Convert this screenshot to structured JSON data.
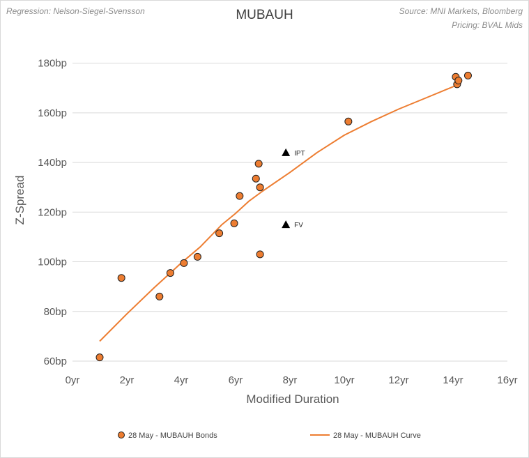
{
  "notes": {
    "left": "Regression: Nelson-Siegel-Svensson",
    "right_line1": "Source: MNI Markets, Bloomberg",
    "right_line2": "Pricing: BVAL Mids"
  },
  "colors": {
    "marker_fill": "#ed7d31",
    "marker_stroke": "#1f1f1f",
    "curve": "#ed7d31",
    "grid": "#d9d9d9",
    "annotation": "#000000"
  },
  "chart_data": {
    "type": "scatter",
    "title": "MUBAUH",
    "xlabel": "Modified Duration",
    "ylabel": "Z-Spread",
    "xlim": [
      0,
      16
    ],
    "ylim": [
      60,
      190
    ],
    "x_ticks": [
      0,
      2,
      4,
      6,
      8,
      10,
      12,
      14,
      16
    ],
    "x_tick_labels": [
      "0yr",
      "2yr",
      "4yr",
      "6yr",
      "8yr",
      "10yr",
      "12yr",
      "14yr",
      "16yr"
    ],
    "y_ticks": [
      60,
      80,
      100,
      120,
      140,
      160,
      180
    ],
    "y_tick_labels": [
      "60bp",
      "80bp",
      "100bp",
      "120bp",
      "140bp",
      "160bp",
      "180bp"
    ],
    "grid": {
      "horizontal": true,
      "vertical": false
    },
    "legend_position": "bottom",
    "series": [
      {
        "name": "28 May - MUBAUH Bonds",
        "kind": "scatter",
        "points": [
          [
            1.0,
            61.5
          ],
          [
            1.8,
            93.5
          ],
          [
            3.2,
            86.0
          ],
          [
            3.6,
            95.5
          ],
          [
            4.1,
            99.5
          ],
          [
            4.6,
            102.0
          ],
          [
            5.4,
            111.5
          ],
          [
            5.95,
            115.5
          ],
          [
            6.15,
            126.5
          ],
          [
            6.75,
            133.5
          ],
          [
            6.85,
            139.5
          ],
          [
            6.9,
            103.0
          ],
          [
            6.9,
            130.0
          ],
          [
            10.15,
            156.5
          ],
          [
            14.1,
            174.5
          ],
          [
            14.15,
            171.5
          ],
          [
            14.2,
            173.0
          ],
          [
            14.55,
            175.0
          ]
        ]
      },
      {
        "name": "28 May - MUBAUH Curve",
        "kind": "line",
        "points": [
          [
            1.0,
            68.0
          ],
          [
            2.0,
            79.0
          ],
          [
            3.0,
            89.5
          ],
          [
            4.0,
            99.5
          ],
          [
            4.7,
            106.0
          ],
          [
            5.5,
            115.0
          ],
          [
            6.0,
            119.5
          ],
          [
            6.5,
            124.5
          ],
          [
            7.0,
            128.5
          ],
          [
            8.0,
            136.0
          ],
          [
            9.0,
            144.0
          ],
          [
            10.0,
            151.0
          ],
          [
            11.0,
            156.5
          ],
          [
            12.0,
            161.5
          ],
          [
            13.0,
            166.0
          ],
          [
            14.0,
            170.5
          ],
          [
            14.3,
            172.0
          ]
        ]
      }
    ],
    "annotations": [
      {
        "label": "IPT",
        "x": 7.85,
        "y": 144.0
      },
      {
        "label": "FV",
        "x": 7.85,
        "y": 115.0
      }
    ]
  }
}
